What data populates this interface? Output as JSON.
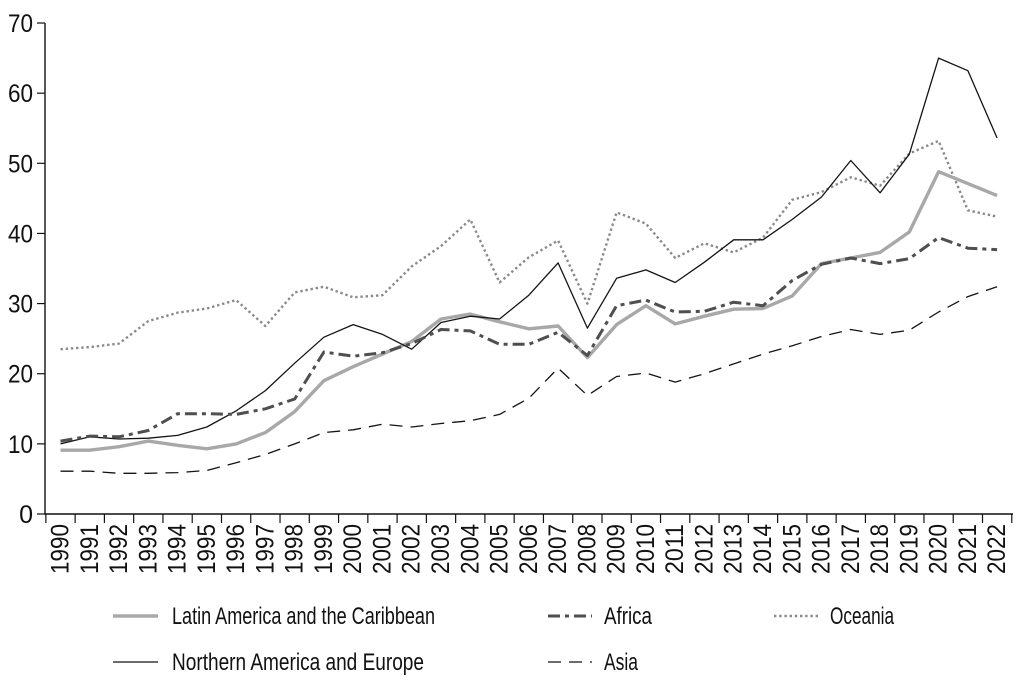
{
  "chart_data": {
    "type": "line",
    "title": "",
    "xlabel": "",
    "ylabel": "",
    "x": [
      1990,
      1991,
      1992,
      1993,
      1994,
      1995,
      1996,
      1997,
      1998,
      1999,
      2000,
      2001,
      2002,
      2003,
      2004,
      2005,
      2006,
      2007,
      2008,
      2009,
      2010,
      2011,
      2012,
      2013,
      2014,
      2015,
      2016,
      2017,
      2018,
      2019,
      2020,
      2021,
      2022
    ],
    "ylim": [
      0,
      70
    ],
    "ytick_step": 10,
    "yticks": [
      0,
      10,
      20,
      30,
      40,
      50,
      60,
      70
    ],
    "grid": false,
    "legend_position": "bottom",
    "series": [
      {
        "name": "Latin America and the Caribbean",
        "style": "solid-thick",
        "color": "#a8a8a8",
        "values": [
          9.1,
          9.1,
          9.6,
          10.4,
          9.8,
          9.3,
          10.0,
          11.6,
          14.6,
          19.0,
          21.0,
          22.8,
          24.6,
          27.8,
          28.5,
          27.4,
          26.4,
          26.8,
          22.3,
          27.0,
          29.7,
          27.1,
          28.2,
          29.2,
          29.3,
          31.1,
          35.7,
          36.5,
          37.3,
          40.2,
          48.8,
          47.1,
          45.4
        ]
      },
      {
        "name": "Northern America and Europe",
        "style": "solid-thin",
        "color": "#141414",
        "values": [
          10.0,
          11.0,
          10.7,
          10.8,
          11.2,
          12.4,
          14.7,
          17.6,
          21.5,
          25.2,
          27.0,
          25.6,
          23.5,
          27.3,
          28.2,
          27.8,
          31.2,
          35.8,
          26.5,
          33.6,
          34.8,
          33.0,
          35.9,
          39.1,
          39.1,
          42.0,
          45.2,
          50.4,
          45.8,
          51.3,
          65.0,
          63.2,
          53.6
        ]
      },
      {
        "name": "Africa",
        "style": "dash-dot",
        "color": "#4f4f4f",
        "values": [
          10.4,
          11.1,
          11.0,
          11.9,
          14.3,
          14.3,
          14.2,
          15.0,
          16.4,
          23.1,
          22.5,
          23.0,
          24.3,
          26.3,
          26.1,
          24.2,
          24.2,
          25.9,
          22.6,
          29.7,
          30.5,
          28.8,
          28.9,
          30.2,
          29.7,
          33.3,
          35.6,
          36.5,
          35.7,
          36.4,
          39.4,
          37.9,
          37.7
        ]
      },
      {
        "name": "Asia",
        "style": "dashed",
        "color": "#141414",
        "values": [
          6.1,
          6.1,
          5.8,
          5.8,
          5.9,
          6.2,
          7.3,
          8.5,
          10.0,
          11.6,
          12.0,
          12.8,
          12.4,
          12.9,
          13.3,
          14.2,
          16.5,
          20.8,
          16.9,
          19.6,
          20.1,
          18.8,
          20.0,
          21.4,
          22.8,
          24.0,
          25.3,
          26.3,
          25.6,
          26.2,
          28.8,
          31.0,
          32.4
        ]
      },
      {
        "name": "Oceania",
        "style": "dotted",
        "color": "#8a8a8a",
        "values": [
          23.5,
          23.8,
          24.3,
          27.5,
          28.7,
          29.3,
          30.5,
          26.8,
          31.6,
          32.4,
          30.9,
          31.2,
          35.3,
          38.2,
          42.0,
          33.0,
          36.6,
          39.0,
          30.0,
          43.0,
          41.4,
          36.5,
          38.6,
          37.3,
          39.4,
          44.8,
          45.9,
          48.0,
          46.8,
          51.4,
          53.2,
          43.3,
          42.4
        ]
      }
    ]
  },
  "legend": {
    "rows": [
      [
        "Latin America and the Caribbean",
        "Africa",
        "Oceania"
      ],
      [
        "Northern America and Europe",
        "Asia"
      ]
    ]
  }
}
